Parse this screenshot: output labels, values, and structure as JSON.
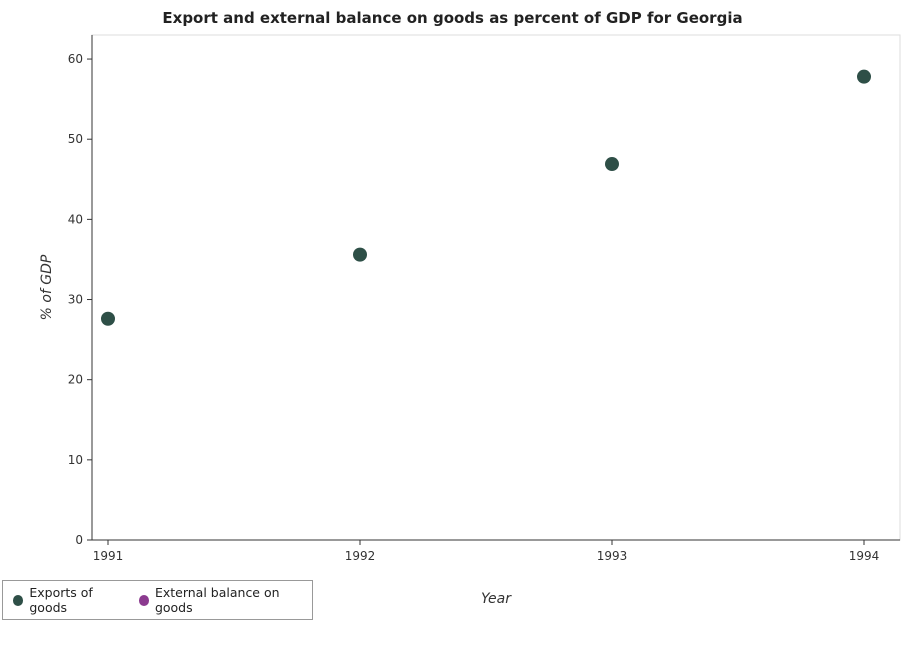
{
  "chart_data": {
    "type": "scatter",
    "title": "Export and external balance on goods as percent of GDP for Georgia",
    "xlabel": "Year",
    "ylabel": "% of GDP",
    "categories": [
      "1991",
      "1992",
      "1993",
      "1994"
    ],
    "ylim": [
      0,
      63
    ],
    "yticks": [
      0,
      10,
      20,
      30,
      40,
      50,
      60
    ],
    "series": [
      {
        "name": "Exports of goods",
        "color": "#2e4f47",
        "values": [
          27.6,
          35.6,
          46.9,
          57.8
        ]
      },
      {
        "name": "External balance on goods",
        "color": "#8b3a8f",
        "values": []
      }
    ],
    "legend_position": "bottom-left",
    "grid": false
  }
}
